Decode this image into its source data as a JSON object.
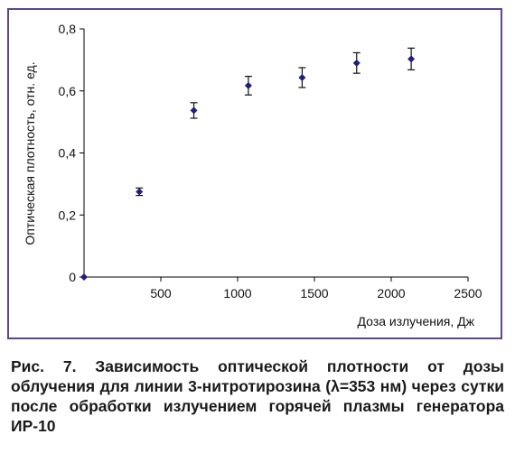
{
  "chart_data": {
    "type": "scatter",
    "xlabel": "Доза излучения, Дж",
    "ylabel": "Оптическая плотность, отн. ед.",
    "xlim": [
      0,
      2500
    ],
    "ylim": [
      0,
      0.8
    ],
    "x_ticks": [
      500,
      1000,
      1500,
      2000,
      2500
    ],
    "y_ticks": [
      "0",
      "0,2",
      "0,4",
      "0,6",
      "0,8"
    ],
    "y_tick_values": [
      0,
      0.2,
      0.4,
      0.6,
      0.8
    ],
    "grid": false,
    "marker_color": "#1f1f7a",
    "points": [
      {
        "x": 0,
        "y": 0,
        "err": 0
      },
      {
        "x": 360,
        "y": 0.275,
        "err": 0.012
      },
      {
        "x": 715,
        "y": 0.537,
        "err": 0.025
      },
      {
        "x": 1070,
        "y": 0.617,
        "err": 0.03
      },
      {
        "x": 1420,
        "y": 0.643,
        "err": 0.032
      },
      {
        "x": 1775,
        "y": 0.69,
        "err": 0.033
      },
      {
        "x": 2130,
        "y": 0.703,
        "err": 0.035
      }
    ]
  },
  "caption": "Рис. 7. Зависимость оптической плотности от дозы облучения для линии 3-нитротирозина (λ=353 нм) через сутки после обработки излучением горячей плазмы генератора ИР-10",
  "colors": {
    "frame": "#5b4694",
    "axis": "#000000"
  }
}
